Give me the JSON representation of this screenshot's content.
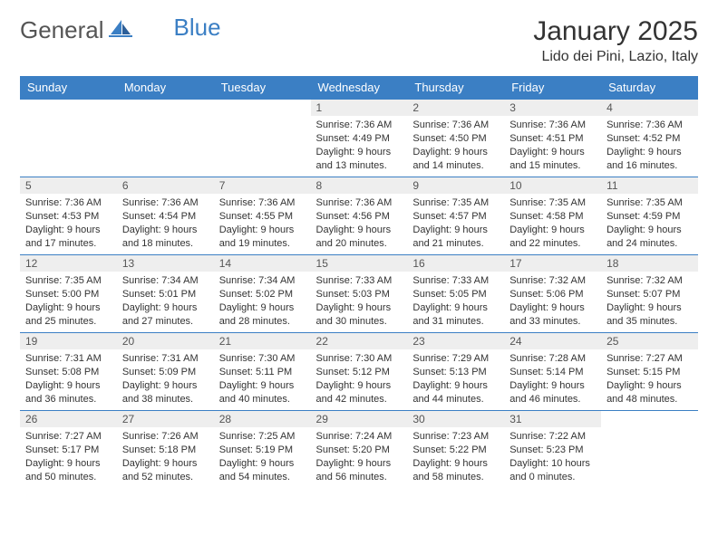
{
  "brand": {
    "word1": "General",
    "word2": "Blue"
  },
  "title": "January 2025",
  "location": "Lido dei Pini, Lazio, Italy",
  "colors": {
    "header_bg": "#3b7fc4",
    "header_text": "#ffffff",
    "daynum_bg": "#eeeeee",
    "cell_border": "#3b7fc4",
    "body_text": "#333333",
    "logo_gray": "#555555",
    "logo_blue": "#3b7fc4",
    "page_bg": "#ffffff"
  },
  "typography": {
    "title_fontsize": 30,
    "location_fontsize": 16,
    "header_fontsize": 13,
    "daynum_fontsize": 12,
    "content_fontsize": 11
  },
  "day_headers": [
    "Sunday",
    "Monday",
    "Tuesday",
    "Wednesday",
    "Thursday",
    "Friday",
    "Saturday"
  ],
  "weeks": [
    [
      {
        "day": "",
        "sunrise": "",
        "sunset": "",
        "daylight": ""
      },
      {
        "day": "",
        "sunrise": "",
        "sunset": "",
        "daylight": ""
      },
      {
        "day": "",
        "sunrise": "",
        "sunset": "",
        "daylight": ""
      },
      {
        "day": "1",
        "sunrise": "Sunrise: 7:36 AM",
        "sunset": "Sunset: 4:49 PM",
        "daylight": "Daylight: 9 hours and 13 minutes."
      },
      {
        "day": "2",
        "sunrise": "Sunrise: 7:36 AM",
        "sunset": "Sunset: 4:50 PM",
        "daylight": "Daylight: 9 hours and 14 minutes."
      },
      {
        "day": "3",
        "sunrise": "Sunrise: 7:36 AM",
        "sunset": "Sunset: 4:51 PM",
        "daylight": "Daylight: 9 hours and 15 minutes."
      },
      {
        "day": "4",
        "sunrise": "Sunrise: 7:36 AM",
        "sunset": "Sunset: 4:52 PM",
        "daylight": "Daylight: 9 hours and 16 minutes."
      }
    ],
    [
      {
        "day": "5",
        "sunrise": "Sunrise: 7:36 AM",
        "sunset": "Sunset: 4:53 PM",
        "daylight": "Daylight: 9 hours and 17 minutes."
      },
      {
        "day": "6",
        "sunrise": "Sunrise: 7:36 AM",
        "sunset": "Sunset: 4:54 PM",
        "daylight": "Daylight: 9 hours and 18 minutes."
      },
      {
        "day": "7",
        "sunrise": "Sunrise: 7:36 AM",
        "sunset": "Sunset: 4:55 PM",
        "daylight": "Daylight: 9 hours and 19 minutes."
      },
      {
        "day": "8",
        "sunrise": "Sunrise: 7:36 AM",
        "sunset": "Sunset: 4:56 PM",
        "daylight": "Daylight: 9 hours and 20 minutes."
      },
      {
        "day": "9",
        "sunrise": "Sunrise: 7:35 AM",
        "sunset": "Sunset: 4:57 PM",
        "daylight": "Daylight: 9 hours and 21 minutes."
      },
      {
        "day": "10",
        "sunrise": "Sunrise: 7:35 AM",
        "sunset": "Sunset: 4:58 PM",
        "daylight": "Daylight: 9 hours and 22 minutes."
      },
      {
        "day": "11",
        "sunrise": "Sunrise: 7:35 AM",
        "sunset": "Sunset: 4:59 PM",
        "daylight": "Daylight: 9 hours and 24 minutes."
      }
    ],
    [
      {
        "day": "12",
        "sunrise": "Sunrise: 7:35 AM",
        "sunset": "Sunset: 5:00 PM",
        "daylight": "Daylight: 9 hours and 25 minutes."
      },
      {
        "day": "13",
        "sunrise": "Sunrise: 7:34 AM",
        "sunset": "Sunset: 5:01 PM",
        "daylight": "Daylight: 9 hours and 27 minutes."
      },
      {
        "day": "14",
        "sunrise": "Sunrise: 7:34 AM",
        "sunset": "Sunset: 5:02 PM",
        "daylight": "Daylight: 9 hours and 28 minutes."
      },
      {
        "day": "15",
        "sunrise": "Sunrise: 7:33 AM",
        "sunset": "Sunset: 5:03 PM",
        "daylight": "Daylight: 9 hours and 30 minutes."
      },
      {
        "day": "16",
        "sunrise": "Sunrise: 7:33 AM",
        "sunset": "Sunset: 5:05 PM",
        "daylight": "Daylight: 9 hours and 31 minutes."
      },
      {
        "day": "17",
        "sunrise": "Sunrise: 7:32 AM",
        "sunset": "Sunset: 5:06 PM",
        "daylight": "Daylight: 9 hours and 33 minutes."
      },
      {
        "day": "18",
        "sunrise": "Sunrise: 7:32 AM",
        "sunset": "Sunset: 5:07 PM",
        "daylight": "Daylight: 9 hours and 35 minutes."
      }
    ],
    [
      {
        "day": "19",
        "sunrise": "Sunrise: 7:31 AM",
        "sunset": "Sunset: 5:08 PM",
        "daylight": "Daylight: 9 hours and 36 minutes."
      },
      {
        "day": "20",
        "sunrise": "Sunrise: 7:31 AM",
        "sunset": "Sunset: 5:09 PM",
        "daylight": "Daylight: 9 hours and 38 minutes."
      },
      {
        "day": "21",
        "sunrise": "Sunrise: 7:30 AM",
        "sunset": "Sunset: 5:11 PM",
        "daylight": "Daylight: 9 hours and 40 minutes."
      },
      {
        "day": "22",
        "sunrise": "Sunrise: 7:30 AM",
        "sunset": "Sunset: 5:12 PM",
        "daylight": "Daylight: 9 hours and 42 minutes."
      },
      {
        "day": "23",
        "sunrise": "Sunrise: 7:29 AM",
        "sunset": "Sunset: 5:13 PM",
        "daylight": "Daylight: 9 hours and 44 minutes."
      },
      {
        "day": "24",
        "sunrise": "Sunrise: 7:28 AM",
        "sunset": "Sunset: 5:14 PM",
        "daylight": "Daylight: 9 hours and 46 minutes."
      },
      {
        "day": "25",
        "sunrise": "Sunrise: 7:27 AM",
        "sunset": "Sunset: 5:15 PM",
        "daylight": "Daylight: 9 hours and 48 minutes."
      }
    ],
    [
      {
        "day": "26",
        "sunrise": "Sunrise: 7:27 AM",
        "sunset": "Sunset: 5:17 PM",
        "daylight": "Daylight: 9 hours and 50 minutes."
      },
      {
        "day": "27",
        "sunrise": "Sunrise: 7:26 AM",
        "sunset": "Sunset: 5:18 PM",
        "daylight": "Daylight: 9 hours and 52 minutes."
      },
      {
        "day": "28",
        "sunrise": "Sunrise: 7:25 AM",
        "sunset": "Sunset: 5:19 PM",
        "daylight": "Daylight: 9 hours and 54 minutes."
      },
      {
        "day": "29",
        "sunrise": "Sunrise: 7:24 AM",
        "sunset": "Sunset: 5:20 PM",
        "daylight": "Daylight: 9 hours and 56 minutes."
      },
      {
        "day": "30",
        "sunrise": "Sunrise: 7:23 AM",
        "sunset": "Sunset: 5:22 PM",
        "daylight": "Daylight: 9 hours and 58 minutes."
      },
      {
        "day": "31",
        "sunrise": "Sunrise: 7:22 AM",
        "sunset": "Sunset: 5:23 PM",
        "daylight": "Daylight: 10 hours and 0 minutes."
      },
      {
        "day": "",
        "sunrise": "",
        "sunset": "",
        "daylight": ""
      }
    ]
  ]
}
